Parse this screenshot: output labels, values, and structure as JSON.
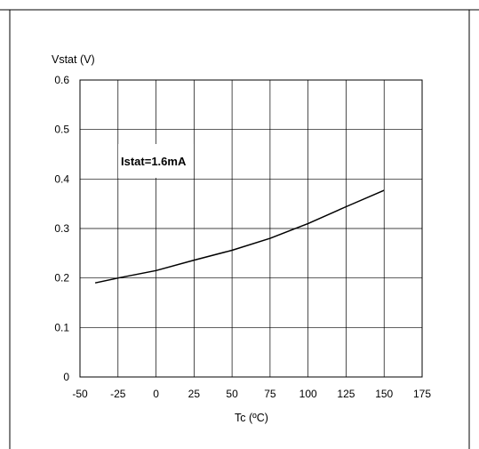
{
  "chart_data": {
    "type": "line",
    "title": "",
    "ylabel": "Vstat (V)",
    "xlabel": "Tc (ºC)",
    "xlim": [
      -50,
      175
    ],
    "ylim": [
      0,
      0.6
    ],
    "x_ticks": [
      -50,
      -25,
      0,
      25,
      50,
      75,
      100,
      125,
      150,
      175
    ],
    "y_ticks": [
      0,
      0.1,
      0.2,
      0.3,
      0.4,
      0.5,
      0.6
    ],
    "grid": true,
    "annotation": "Istat=1.6mA",
    "series": [
      {
        "x": [
          -40,
          -25,
          0,
          25,
          50,
          75,
          100,
          125,
          150
        ],
        "y": [
          0.19,
          0.2,
          0.215,
          0.236,
          0.256,
          0.28,
          0.31,
          0.344,
          0.377
        ]
      }
    ]
  }
}
